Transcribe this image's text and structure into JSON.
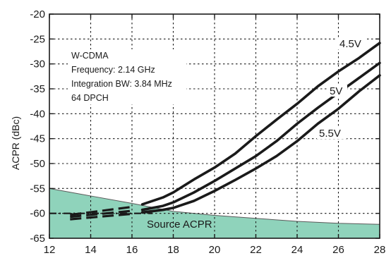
{
  "chart_data": {
    "type": "line",
    "ylabel": "ACPR (dBc)",
    "xlabel": "",
    "xlim": [
      12,
      28
    ],
    "ylim": [
      -65,
      -20
    ],
    "x_ticks": [
      "12",
      "14",
      "16",
      "18",
      "20",
      "22",
      "24",
      "26",
      "28"
    ],
    "y_ticks": [
      "-20",
      "-25",
      "-30",
      "-35",
      "-40",
      "-45",
      "-50",
      "-55",
      "-60",
      "-65"
    ],
    "grid": true,
    "annotation_lines": [
      "W-CDMA",
      "Frequency: 2.14 GHz",
      "Integration BW: 3.84 MHz",
      "64 DPCH"
    ],
    "source_area": {
      "name": "Source ACPR",
      "color": "#8fd3bb",
      "points": [
        [
          12,
          -55.0
        ],
        [
          14,
          -56.5
        ],
        [
          16,
          -58.0
        ],
        [
          18,
          -59.6
        ],
        [
          20,
          -60.4
        ],
        [
          22,
          -61.0
        ],
        [
          24,
          -61.6
        ],
        [
          26,
          -62.0
        ],
        [
          28,
          -62.2
        ]
      ]
    },
    "series": [
      {
        "name": "4.5V",
        "dashed_points": [
          [
            13,
            -60.3
          ],
          [
            16,
            -58.7
          ]
        ],
        "points": [
          [
            16.5,
            -58.2
          ],
          [
            17.5,
            -56.8
          ],
          [
            18,
            -55.8
          ],
          [
            19,
            -53.2
          ],
          [
            20,
            -50.8
          ],
          [
            21,
            -48.0
          ],
          [
            22,
            -44.5
          ],
          [
            23,
            -41.2
          ],
          [
            24,
            -38.0
          ],
          [
            25,
            -34.5
          ],
          [
            26,
            -31.5
          ],
          [
            27,
            -28.8
          ],
          [
            28,
            -25.8
          ]
        ]
      },
      {
        "name": "5V",
        "dashed_points": [
          [
            13,
            -60.7
          ],
          [
            16,
            -59.5
          ]
        ],
        "points": [
          [
            16.5,
            -59.3
          ],
          [
            17.5,
            -58.5
          ],
          [
            18,
            -57.8
          ],
          [
            19,
            -55.8
          ],
          [
            20,
            -53.5
          ],
          [
            21,
            -51.0
          ],
          [
            22,
            -48.5
          ],
          [
            23,
            -45.5
          ],
          [
            24,
            -42.0
          ],
          [
            25,
            -38.8
          ],
          [
            26,
            -35.8
          ],
          [
            27,
            -32.8
          ],
          [
            28,
            -29.8
          ]
        ]
      },
      {
        "name": "5.5V",
        "dashed_points": [
          [
            13,
            -61.2
          ],
          [
            16,
            -60.1
          ]
        ],
        "points": [
          [
            16.5,
            -59.8
          ],
          [
            17.5,
            -59.3
          ],
          [
            18,
            -58.9
          ],
          [
            19,
            -57.5
          ],
          [
            20,
            -55.5
          ],
          [
            21,
            -53.3
          ],
          [
            22,
            -51.0
          ],
          [
            23,
            -48.5
          ],
          [
            24,
            -45.5
          ],
          [
            25,
            -42.0
          ],
          [
            26,
            -39.0
          ],
          [
            27,
            -35.5
          ],
          [
            28,
            -32.3
          ]
        ]
      }
    ],
    "dashdot_line": {
      "points": [
        [
          12,
          -60.0
        ],
        [
          17,
          -60.0
        ]
      ]
    }
  }
}
